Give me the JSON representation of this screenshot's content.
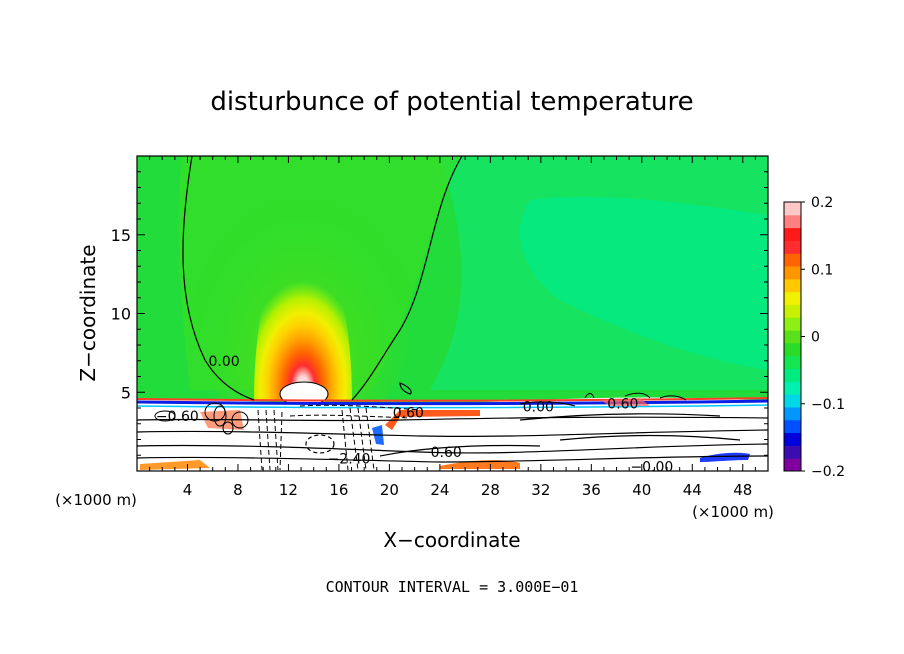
{
  "chart_data": {
    "type": "heatmap",
    "title": "disturbunce of potential temperature",
    "xlabel": "X−coordinate",
    "ylabel": "Z−coordinate",
    "x_unit_left": "(×1000 m)",
    "x_unit_right": "(×1000 m)",
    "xlim": [
      0,
      50
    ],
    "ylim": [
      0,
      20
    ],
    "xticks": [
      "4",
      "8",
      "12",
      "16",
      "20",
      "24",
      "28",
      "32",
      "36",
      "40",
      "44",
      "48"
    ],
    "yticks": [
      "5",
      "10",
      "15"
    ],
    "footer": "CONTOUR INTERVAL = 3.000E−01",
    "colorbar": {
      "range": [
        -0.2,
        0.2
      ],
      "tick_labels": [
        "0.2",
        "0.1",
        "0",
        "−0.1",
        "−0.2"
      ],
      "colors": [
        "#8000a0",
        "#3a0db0",
        "#0000dd",
        "#0050ff",
        "#0098ff",
        "#00d8e6",
        "#00f0b0",
        "#00ec80",
        "#14e650",
        "#28dc28",
        "#5ae018",
        "#8cf014",
        "#c8f000",
        "#f0f000",
        "#ffc800",
        "#ff9600",
        "#ff6400",
        "#ff2d2d",
        "#ff1a1a",
        "#ff8080",
        "#ffc8c8"
      ]
    },
    "contour_labels": [
      {
        "text": "0.00",
        "x": 6.9,
        "z": 7.0
      },
      {
        "text": "0.60",
        "x": 21.5,
        "z": 3.7
      },
      {
        "text": "0.60",
        "x": 24.5,
        "z": 1.2
      },
      {
        "text": "0.00",
        "x": 31.8,
        "z": 4.1
      },
      {
        "text": "0.60",
        "x": 38.5,
        "z": 4.3
      },
      {
        "text": "−0.60",
        "x": 3.2,
        "z": 3.5
      },
      {
        "text": "−2.40",
        "x": 16.8,
        "z": 0.8
      },
      {
        "text": "−0.00",
        "x": 40.8,
        "z": 0.3
      }
    ]
  }
}
